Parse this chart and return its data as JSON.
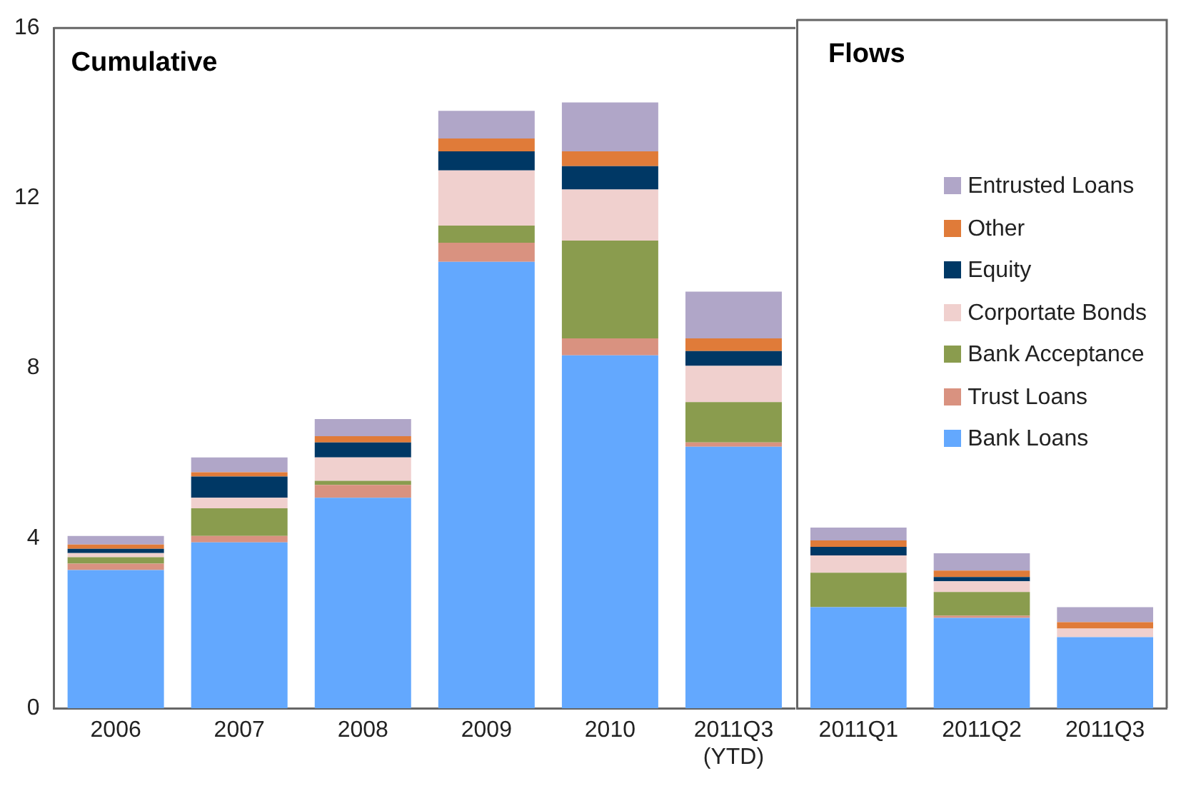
{
  "chart_data": [
    {
      "type": "bar",
      "title": "Cumulative",
      "stacked": true,
      "categories": [
        "2006",
        "2007",
        "2008",
        "2009",
        "2010",
        "2011Q3 (YTD)"
      ],
      "ylim": [
        0,
        16
      ],
      "yticks": [
        0,
        4,
        8,
        12,
        16
      ],
      "grid": false,
      "series": [
        {
          "color": "#63a8fe",
          "values": [
            3.25,
            3.9,
            4.95,
            10.5,
            8.3,
            6.15
          ]
        },
        {
          "color": "#d99280",
          "values": [
            0.15,
            0.15,
            0.3,
            0.45,
            0.4,
            0.1
          ]
        },
        {
          "color": "#8a9c4e",
          "values": [
            0.15,
            0.65,
            0.1,
            0.4,
            2.3,
            0.95
          ]
        },
        {
          "color": "#f0d0ce",
          "values": [
            0.1,
            0.25,
            0.55,
            1.3,
            1.2,
            0.85
          ]
        },
        {
          "color": "#003865",
          "values": [
            0.1,
            0.5,
            0.35,
            0.45,
            0.55,
            0.35
          ]
        },
        {
          "color": "#e07b39",
          "values": [
            0.1,
            0.1,
            0.15,
            0.3,
            0.35,
            0.3
          ]
        },
        {
          "color": "#b0a6c8",
          "values": [
            0.2,
            0.35,
            0.4,
            0.65,
            1.15,
            1.1
          ]
        }
      ]
    },
    {
      "type": "bar",
      "title": "Flows",
      "stacked": true,
      "categories": [
        "2011Q1",
        "2011Q2",
        "2011Q3"
      ],
      "ylim": [
        0,
        16
      ],
      "yticks": [
        0,
        4,
        8,
        12,
        16
      ],
      "tick_labels": "x",
      "grid": false,
      "legend": "top right",
      "series": [
        {
          "name": "Bank Loans",
          "color": "#63a8fe",
          "values": [
            2.35,
            2.1,
            1.65
          ]
        },
        {
          "name": "Trust Loans",
          "color": "#d99280",
          "values": [
            0,
            0.05,
            0
          ]
        },
        {
          "name": "Bank Acceptance",
          "color": "#8a9c4e",
          "values": [
            0.8,
            0.55,
            0
          ]
        },
        {
          "name": "Corportate Bonds",
          "color": "#f0d0ce",
          "values": [
            0.4,
            0.25,
            0.2
          ]
        },
        {
          "name": "Equity",
          "color": "#003865",
          "values": [
            0.2,
            0.1,
            0
          ]
        },
        {
          "name": "Other",
          "color": "#e07b39",
          "values": [
            0.15,
            0.15,
            0.15
          ]
        },
        {
          "name": "Entrusted Loans",
          "color": "#b0a6c8",
          "values": [
            0.3,
            0.4,
            0.35
          ]
        }
      ]
    }
  ]
}
